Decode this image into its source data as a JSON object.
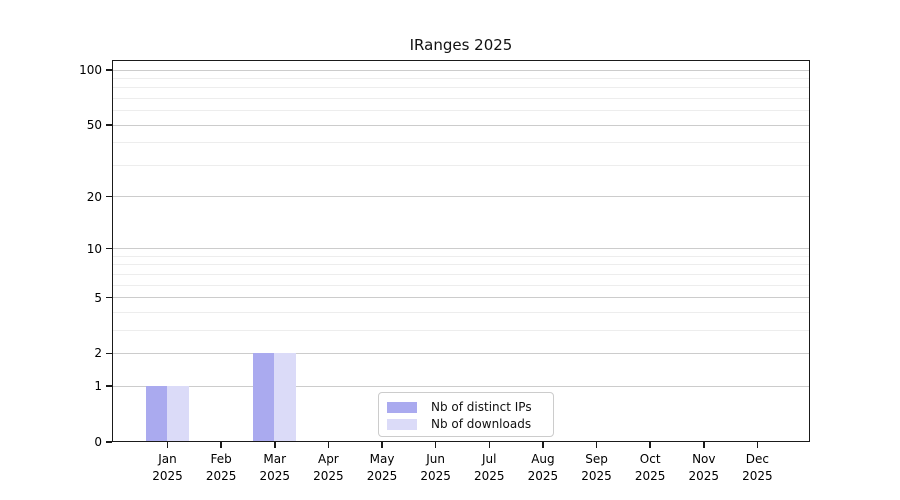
{
  "chart_data": {
    "type": "bar",
    "title": "IRanges 2025",
    "categories": [
      "Jan",
      "Feb",
      "Mar",
      "Apr",
      "May",
      "Jun",
      "Jul",
      "Aug",
      "Sep",
      "Oct",
      "Nov",
      "Dec"
    ],
    "category_year": "2025",
    "series": [
      {
        "name": "Nb of distinct IPs",
        "color": "#aaaaef",
        "values": [
          1,
          0,
          2,
          0,
          0,
          0,
          0,
          0,
          0,
          0,
          0,
          0
        ]
      },
      {
        "name": "Nb of downloads",
        "color": "#dbdbf8",
        "values": [
          1,
          0,
          2,
          0,
          0,
          0,
          0,
          0,
          0,
          0,
          0,
          0
        ]
      }
    ],
    "y_scale": "log1p",
    "y_ticks": [
      0,
      1,
      2,
      5,
      10,
      20,
      50,
      100
    ],
    "y_minor_ticks": [
      3,
      4,
      6,
      7,
      8,
      9,
      30,
      40,
      60,
      70,
      80,
      90
    ],
    "ylim": [
      0,
      113.4
    ],
    "grid": true,
    "legend_position": "lower center",
    "colors": {
      "major_grid": "#cccccc",
      "minor_grid": "#ededed",
      "spine": "#1a1a1a",
      "text": "#000000",
      "background": "#ffffff"
    }
  }
}
